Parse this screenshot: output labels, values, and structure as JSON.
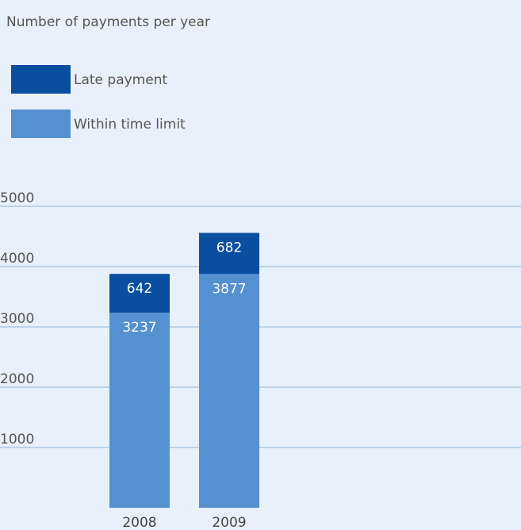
{
  "chart_data": {
    "type": "bar",
    "stacked": true,
    "title": "Number of payments per year",
    "categories": [
      "2008",
      "2009"
    ],
    "series": [
      {
        "name": "Within time limit",
        "values": [
          3237,
          3877
        ],
        "color": "#5590d0"
      },
      {
        "name": "Late payment",
        "values": [
          642,
          682
        ],
        "color": "#0a4ea0"
      }
    ],
    "legend_order": [
      "Late payment",
      "Within time limit"
    ],
    "y_ticks": [
      1000,
      2000,
      3000,
      4000,
      5000
    ],
    "ylim": [
      0,
      5000
    ],
    "grid": true,
    "legend_position": "top-left"
  }
}
